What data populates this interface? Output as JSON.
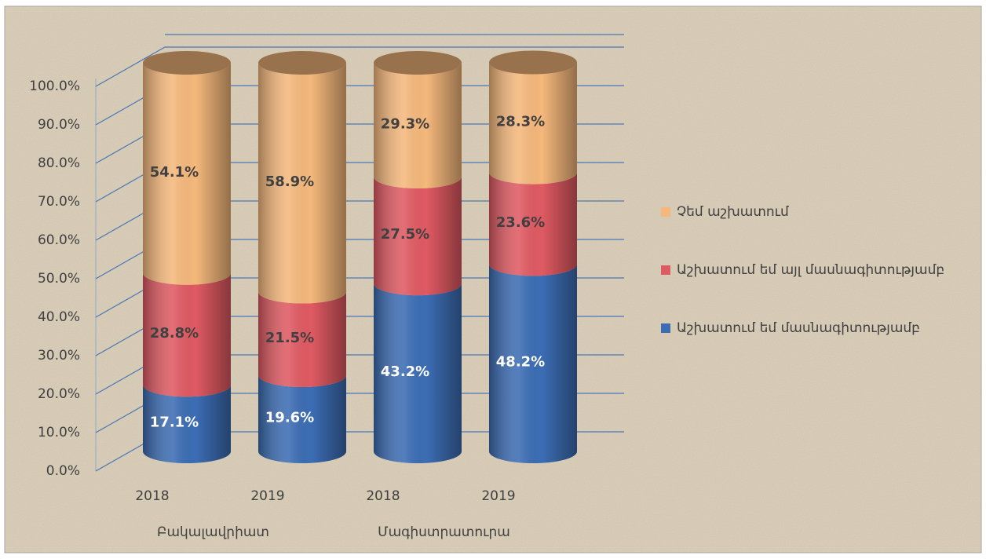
{
  "chart_data": {
    "type": "stacked_cylinder",
    "categories": [
      "2018",
      "2019",
      "2018",
      "2019"
    ],
    "groups": [
      "Բակալավրիատ",
      "Մագիստրատուրա"
    ],
    "series": [
      {
        "name": "Աշխատում եմ մասնագիտությամբ",
        "color": "#3c6db4",
        "values": [
          17.1,
          19.6,
          43.2,
          48.2
        ],
        "value_labels": [
          "17.1%",
          "19.6%",
          "43.2%",
          "48.2%"
        ]
      },
      {
        "name": "Աշխատում եմ այլ մասնագիտությամբ",
        "color": "#e05a63",
        "values": [
          28.8,
          21.5,
          27.5,
          23.6
        ],
        "value_labels": [
          "28.8%",
          "21.5%",
          "27.5%",
          "23.6%"
        ]
      },
      {
        "name": "Չեմ աշխատում",
        "color": "#f5b87c",
        "values": [
          54.1,
          58.9,
          29.3,
          28.3
        ],
        "value_labels": [
          "54.1%",
          "58.9%",
          "29.3%",
          "28.3%"
        ]
      }
    ],
    "ylim": [
      0,
      100
    ],
    "yticks": [
      {
        "value": 0,
        "label": "0.0%"
      },
      {
        "value": 10,
        "label": "10.0%"
      },
      {
        "value": 20,
        "label": "20.0%"
      },
      {
        "value": 30,
        "label": "30.0%"
      },
      {
        "value": 40,
        "label": "40.0%"
      },
      {
        "value": 50,
        "label": "50.0%"
      },
      {
        "value": 60,
        "label": "60.0%"
      },
      {
        "value": 70,
        "label": "70.0%"
      },
      {
        "value": 80,
        "label": "80.0%"
      },
      {
        "value": 90,
        "label": "90.0%"
      },
      {
        "value": 100,
        "label": "100.0%"
      }
    ],
    "grid": true,
    "legend": "right"
  }
}
